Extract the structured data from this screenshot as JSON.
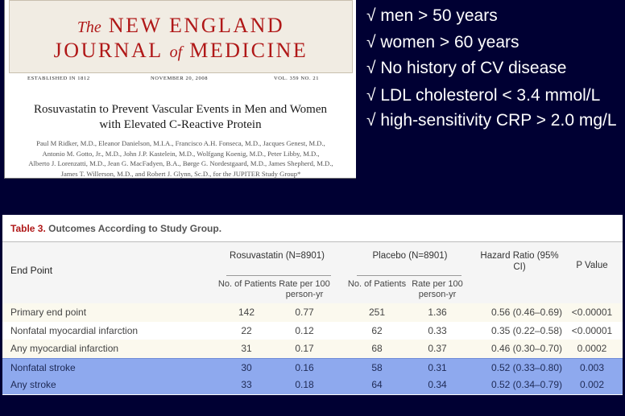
{
  "journal": {
    "the": "The",
    "line1": "NEW ENGLAND",
    "journal_word": "JOURNAL",
    "of": "of",
    "medicine_word": "MEDICINE",
    "established": "ESTABLISHED IN 1812",
    "date": "NOVEMBER 20, 2008",
    "volume": "VOL. 359   NO. 21",
    "title_line1": "Rosuvastatin to Prevent Vascular Events in Men and Women",
    "title_line2": "with Elevated C-Reactive Protein",
    "authors": [
      "Paul M Ridker, M.D., Eleanor Danielson, M.I.A., Francisco A.H. Fonseca, M.D., Jacques Genest, M.D.,",
      "Antonio M. Gotto, Jr., M.D., John J.P. Kastelein, M.D., Wolfgang Koenig, M.D., Peter Libby, M.D.,",
      "Alberto J. Lorenzatti, M.D., Jean G. MacFadyen, B.A., Børge G. Nordestgaard, M.D., James Shepherd, M.D.,",
      "James T. Willerson, M.D., and Robert J. Glynn, Sc.D., for the JUPITER Study Group*"
    ]
  },
  "criteria": [
    "√ men > 50 years",
    "√ women > 60 years",
    "√ No history of CV disease",
    "√ LDL cholesterol < 3.4 mmol/L",
    "√ high-sensitivity CRP > 2.0 mg/L"
  ],
  "table": {
    "caption_label": "Table 3.",
    "caption_text": "Outcomes According to Study Group.",
    "end_point_header": "End Point",
    "group1": "Rosuvastatin (N=8901)",
    "group2": "Placebo (N=8901)",
    "hr_header": "Hazard Ratio (95% CI)",
    "pv_header": "P Value",
    "sub_n": "No. of Patients",
    "sub_rate": "Rate per 100 person-yr",
    "rows": [
      {
        "name": "Primary end point",
        "r_n": "142",
        "r_rate": "0.77",
        "p_n": "251",
        "p_rate": "1.36",
        "hr": "0.56 (0.46–0.69)",
        "pv": "<0.00001"
      },
      {
        "name": "Nonfatal myocardial infarction",
        "r_n": "22",
        "r_rate": "0.12",
        "p_n": "62",
        "p_rate": "0.33",
        "hr": "0.35 (0.22–0.58)",
        "pv": "<0.00001"
      },
      {
        "name": "Any myocardial infarction",
        "r_n": "31",
        "r_rate": "0.17",
        "p_n": "68",
        "p_rate": "0.37",
        "hr": "0.46 (0.30–0.70)",
        "pv": "0.0002"
      },
      {
        "name": "Nonfatal stroke",
        "r_n": "30",
        "r_rate": "0.16",
        "p_n": "58",
        "p_rate": "0.31",
        "hr": "0.52 (0.33–0.80)",
        "pv": "0.003"
      },
      {
        "name": "Any stroke",
        "r_n": "33",
        "r_rate": "0.18",
        "p_n": "64",
        "p_rate": "0.34",
        "hr": "0.52 (0.34–0.79)",
        "pv": "0.002"
      }
    ],
    "highlight_color": "#8ea9ee"
  }
}
